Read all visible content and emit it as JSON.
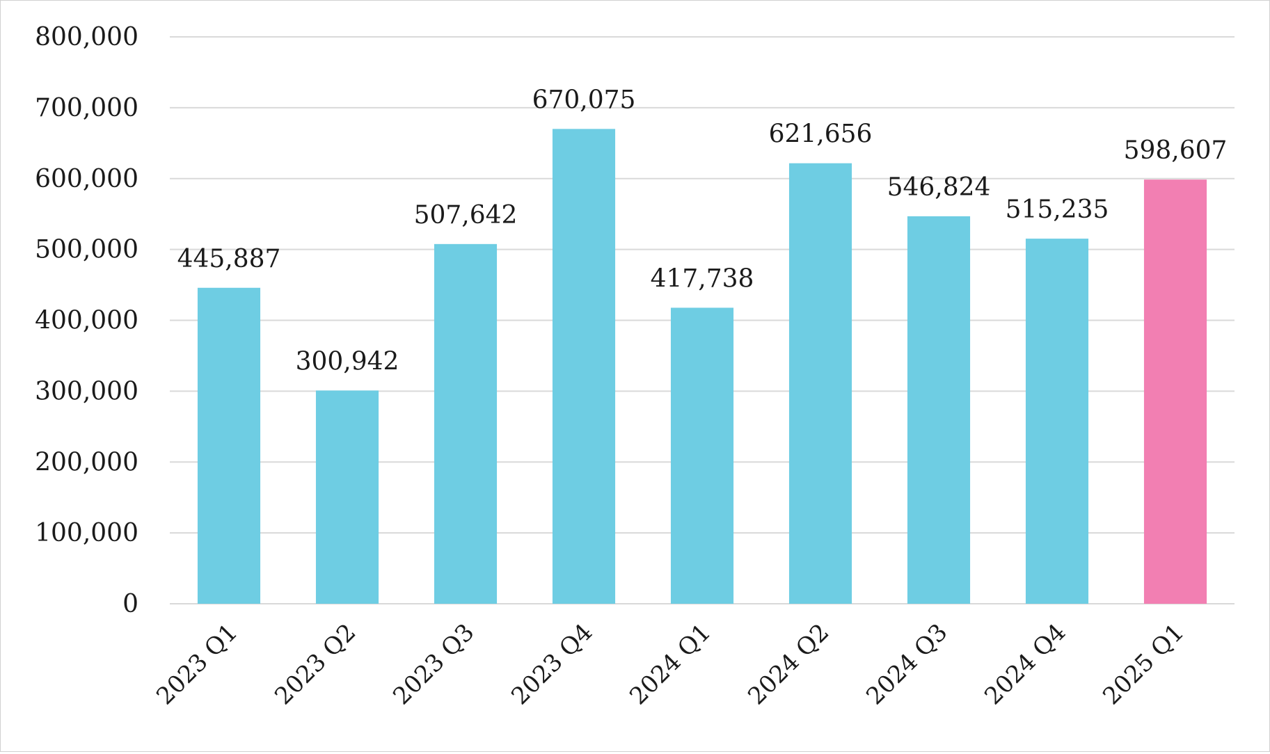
{
  "chart_data": {
    "type": "bar",
    "title": "",
    "xlabel": "",
    "ylabel": "",
    "categories": [
      "2023 Q1",
      "2023 Q2",
      "2023 Q3",
      "2023 Q4",
      "2024 Q1",
      "2024 Q2",
      "2024 Q3",
      "2024 Q4",
      "2025 Q1"
    ],
    "values": [
      445887,
      300942,
      507642,
      670075,
      417738,
      621656,
      546824,
      515235,
      598607
    ],
    "data_labels": [
      "445,887",
      "300,942",
      "507,642",
      "670,075",
      "417,738",
      "621,656",
      "546,824",
      "515,235",
      "598,607"
    ],
    "bar_colors": [
      "#6ecde3",
      "#6ecde3",
      "#6ecde3",
      "#6ecde3",
      "#6ecde3",
      "#6ecde3",
      "#6ecde3",
      "#6ecde3",
      "#f27fb2"
    ],
    "ylim": [
      0,
      800000
    ],
    "y_ticks": [
      0,
      100000,
      200000,
      300000,
      400000,
      500000,
      600000,
      700000,
      800000
    ],
    "y_tick_labels": [
      "0",
      "100,000",
      "200,000",
      "300,000",
      "400,000",
      "500,000",
      "600,000",
      "700,000",
      "800,000"
    ],
    "grid": true,
    "legend": "none"
  }
}
